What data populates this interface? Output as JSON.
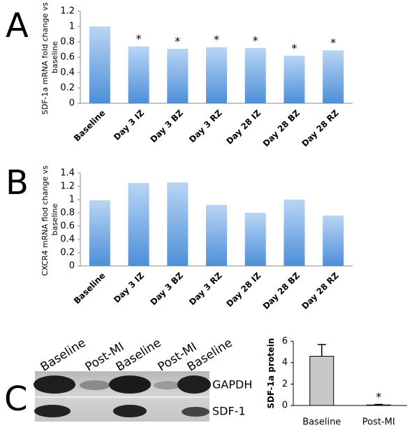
{
  "chart_data": [
    {
      "type": "bar",
      "panel": "A",
      "y_label": "SDF-1a mRNA fold change vs baseline",
      "categories": [
        "Baseline",
        "Day 3 IZ",
        "Day 3 BZ",
        "Day 3 RZ",
        "Day 28 IZ",
        "Day 28 BZ",
        "Day 28 RZ"
      ],
      "values": [
        1.0,
        0.74,
        0.71,
        0.73,
        0.72,
        0.62,
        0.69
      ],
      "markers": [
        null,
        "*",
        "*",
        "*",
        "*",
        "*",
        "*"
      ],
      "ylim": [
        0,
        1.2
      ],
      "yticks": [
        0,
        0.2,
        0.4,
        0.6,
        0.8,
        1,
        1.2
      ]
    },
    {
      "type": "bar",
      "panel": "B",
      "y_label": "CXCR4 mRNA flod change vs baseline",
      "categories": [
        "Baseline",
        "Day 3 IZ",
        "Day 3 BZ",
        "Day 3 RZ",
        "Day 28 IZ",
        "Day 28 BZ",
        "Day 28 RZ"
      ],
      "values": [
        0.99,
        1.25,
        1.26,
        0.92,
        0.8,
        1.0,
        0.76
      ],
      "ylim": [
        0,
        1.4
      ],
      "yticks": [
        0,
        0.2,
        0.4,
        0.6,
        0.8,
        1,
        1.2,
        1.4
      ]
    },
    {
      "type": "bar",
      "y_label": "SDF-1a protein",
      "categories": [
        "Baseline",
        "Post-MI"
      ],
      "values": [
        4.6,
        0.05
      ],
      "errors": [
        1.1,
        0.05
      ],
      "markers": [
        null,
        "*"
      ],
      "ylim": [
        0,
        6
      ],
      "yticks": [
        0,
        2,
        4,
        6
      ]
    }
  ],
  "blot": {
    "panel": "C",
    "lanes": [
      "Baseline",
      "Post-MI",
      "Baseline",
      "Post-MI",
      "Baseline"
    ],
    "bands": [
      "GAPDH",
      "SDF-1"
    ]
  }
}
